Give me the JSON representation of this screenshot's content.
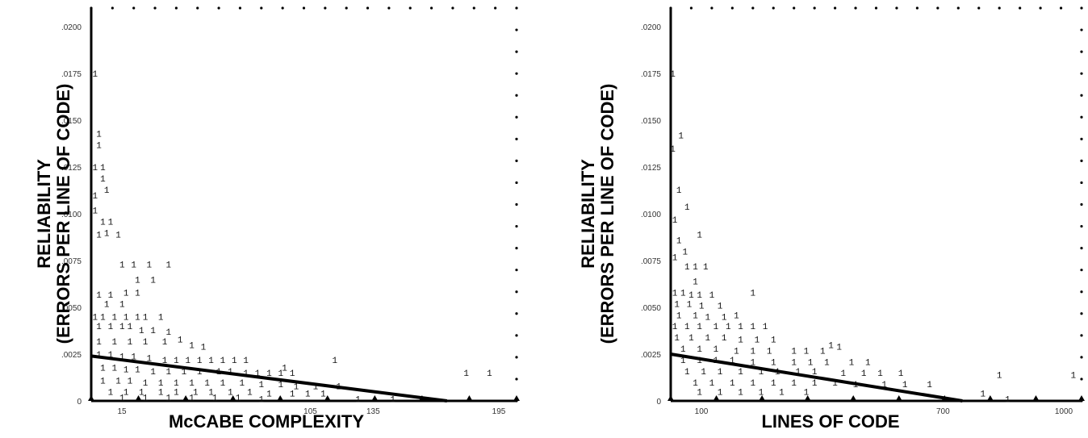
{
  "chart_data": [
    {
      "type": "scatter",
      "title": "",
      "xlabel": "McCABE COMPLEXITY",
      "ylabel_line1": "RELIABILITY",
      "ylabel_line2": "(ERRORS PER LINE OF CODE)",
      "xlim": [
        0,
        110
      ],
      "ylim": [
        0,
        0.021
      ],
      "x_ticks": [
        "15",
        "",
        "",
        "105",
        "135",
        "",
        "195"
      ],
      "y_ticks": [
        "0",
        ".0025",
        ".0050",
        ".0075",
        ".0100",
        ".0125",
        ".0150",
        ".0175",
        ".0200"
      ],
      "grid": false,
      "marker": "1",
      "trend_line": {
        "x": [
          0,
          92
        ],
        "y": [
          0.0024,
          0.0
        ]
      },
      "points": [
        [
          1,
          0.0175
        ],
        [
          1,
          0.0125
        ],
        [
          2,
          0.0143
        ],
        [
          2,
          0.0137
        ],
        [
          3,
          0.0125
        ],
        [
          3,
          0.0119
        ],
        [
          4,
          0.0113
        ],
        [
          1,
          0.011
        ],
        [
          1,
          0.0102
        ],
        [
          3,
          0.0096
        ],
        [
          5,
          0.0096
        ],
        [
          2,
          0.0089
        ],
        [
          4,
          0.009
        ],
        [
          7,
          0.0089
        ],
        [
          8,
          0.0073
        ],
        [
          11,
          0.0073
        ],
        [
          15,
          0.0073
        ],
        [
          20,
          0.0073
        ],
        [
          12,
          0.0065
        ],
        [
          16,
          0.0065
        ],
        [
          2,
          0.0057
        ],
        [
          5,
          0.0057
        ],
        [
          9,
          0.0058
        ],
        [
          12,
          0.0058
        ],
        [
          4,
          0.0052
        ],
        [
          8,
          0.0052
        ],
        [
          1,
          0.0045
        ],
        [
          3,
          0.0045
        ],
        [
          6,
          0.0045
        ],
        [
          9,
          0.0045
        ],
        [
          12,
          0.0045
        ],
        [
          14,
          0.0045
        ],
        [
          18,
          0.0045
        ],
        [
          2,
          0.004
        ],
        [
          5,
          0.004
        ],
        [
          8,
          0.004
        ],
        [
          10,
          0.004
        ],
        [
          13,
          0.0038
        ],
        [
          16,
          0.0038
        ],
        [
          20,
          0.0037
        ],
        [
          23,
          0.0033
        ],
        [
          2,
          0.0032
        ],
        [
          6,
          0.0032
        ],
        [
          10,
          0.0032
        ],
        [
          14,
          0.0032
        ],
        [
          19,
          0.0032
        ],
        [
          26,
          0.003
        ],
        [
          29,
          0.0029
        ],
        [
          2,
          0.0025
        ],
        [
          5,
          0.0025
        ],
        [
          8,
          0.0024
        ],
        [
          11,
          0.0024
        ],
        [
          15,
          0.0023
        ],
        [
          19,
          0.0022
        ],
        [
          22,
          0.0022
        ],
        [
          25,
          0.0022
        ],
        [
          28,
          0.0022
        ],
        [
          31,
          0.0022
        ],
        [
          34,
          0.0022
        ],
        [
          37,
          0.0022
        ],
        [
          40,
          0.0022
        ],
        [
          3,
          0.0018
        ],
        [
          6,
          0.0018
        ],
        [
          9,
          0.0017
        ],
        [
          12,
          0.0017
        ],
        [
          16,
          0.0016
        ],
        [
          20,
          0.0016
        ],
        [
          24,
          0.0016
        ],
        [
          28,
          0.0016
        ],
        [
          33,
          0.0016
        ],
        [
          36,
          0.0016
        ],
        [
          40,
          0.0015
        ],
        [
          43,
          0.0015
        ],
        [
          46,
          0.0015
        ],
        [
          49,
          0.0015
        ],
        [
          52,
          0.0015
        ],
        [
          3,
          0.0011
        ],
        [
          7,
          0.0011
        ],
        [
          10,
          0.0011
        ],
        [
          14,
          0.001
        ],
        [
          18,
          0.001
        ],
        [
          22,
          0.001
        ],
        [
          26,
          0.001
        ],
        [
          30,
          0.001
        ],
        [
          34,
          0.001
        ],
        [
          39,
          0.001
        ],
        [
          44,
          0.0009
        ],
        [
          49,
          0.0009
        ],
        [
          53,
          0.0008
        ],
        [
          58,
          0.0008
        ],
        [
          64,
          0.0008
        ],
        [
          5,
          0.0005
        ],
        [
          9,
          0.0005
        ],
        [
          13,
          0.0005
        ],
        [
          18,
          0.0005
        ],
        [
          22,
          0.0005
        ],
        [
          27,
          0.0005
        ],
        [
          31,
          0.0005
        ],
        [
          36,
          0.0005
        ],
        [
          41,
          0.0005
        ],
        [
          46,
          0.0004
        ],
        [
          52,
          0.0004
        ],
        [
          56,
          0.0004
        ],
        [
          60,
          0.0004
        ],
        [
          8,
          0.0002
        ],
        [
          14,
          0.0002
        ],
        [
          20,
          0.0002
        ],
        [
          26,
          0.0002
        ],
        [
          32,
          0.0002
        ],
        [
          38,
          0.0002
        ],
        [
          44,
          0.0001
        ],
        [
          69,
          0.0001
        ],
        [
          78,
          0.0001
        ],
        [
          97,
          0.0015
        ],
        [
          103,
          0.0015
        ],
        [
          50,
          0.0018
        ],
        [
          63,
          0.0022
        ]
      ]
    },
    {
      "type": "scatter",
      "title": "",
      "xlabel": "LINES OF CODE",
      "ylabel_line1": "RELIABILITY",
      "ylabel_line2": "(ERRORS PER LINE OF CODE)",
      "xlim": [
        0,
        1000
      ],
      "ylim": [
        0,
        0.021
      ],
      "x_ticks": [
        "100",
        "",
        "",
        "",
        "700",
        "",
        "1000"
      ],
      "y_ticks": [
        "0",
        ".0025",
        ".0050",
        ".0075",
        ".0100",
        ".0125",
        ".0150",
        ".0175",
        ".0200"
      ],
      "grid": false,
      "marker": "1",
      "trend_line": {
        "x": [
          0,
          710
        ],
        "y": [
          0.0025,
          0.0
        ]
      },
      "points": [
        [
          5,
          0.0175
        ],
        [
          5,
          0.0135
        ],
        [
          25,
          0.0142
        ],
        [
          20,
          0.0113
        ],
        [
          40,
          0.0104
        ],
        [
          10,
          0.0097
        ],
        [
          70,
          0.0089
        ],
        [
          20,
          0.0086
        ],
        [
          35,
          0.008
        ],
        [
          10,
          0.0077
        ],
        [
          40,
          0.0072
        ],
        [
          60,
          0.0072
        ],
        [
          85,
          0.0072
        ],
        [
          60,
          0.0064
        ],
        [
          10,
          0.0058
        ],
        [
          30,
          0.0058
        ],
        [
          50,
          0.0057
        ],
        [
          70,
          0.0057
        ],
        [
          100,
          0.0057
        ],
        [
          200,
          0.0058
        ],
        [
          15,
          0.0052
        ],
        [
          45,
          0.0052
        ],
        [
          75,
          0.0051
        ],
        [
          120,
          0.0051
        ],
        [
          20,
          0.0046
        ],
        [
          60,
          0.0046
        ],
        [
          90,
          0.0045
        ],
        [
          130,
          0.0045
        ],
        [
          160,
          0.0046
        ],
        [
          10,
          0.004
        ],
        [
          40,
          0.004
        ],
        [
          70,
          0.004
        ],
        [
          110,
          0.004
        ],
        [
          140,
          0.004
        ],
        [
          170,
          0.004
        ],
        [
          200,
          0.004
        ],
        [
          230,
          0.004
        ],
        [
          15,
          0.0034
        ],
        [
          50,
          0.0034
        ],
        [
          90,
          0.0034
        ],
        [
          130,
          0.0034
        ],
        [
          170,
          0.0033
        ],
        [
          210,
          0.0033
        ],
        [
          250,
          0.0033
        ],
        [
          30,
          0.0028
        ],
        [
          70,
          0.0028
        ],
        [
          110,
          0.0028
        ],
        [
          160,
          0.0027
        ],
        [
          200,
          0.0027
        ],
        [
          240,
          0.0027
        ],
        [
          300,
          0.0027
        ],
        [
          330,
          0.0027
        ],
        [
          370,
          0.0027
        ],
        [
          390,
          0.003
        ],
        [
          410,
          0.0029
        ],
        [
          30,
          0.0022
        ],
        [
          70,
          0.0022
        ],
        [
          110,
          0.0022
        ],
        [
          150,
          0.0022
        ],
        [
          200,
          0.0021
        ],
        [
          250,
          0.0021
        ],
        [
          300,
          0.0021
        ],
        [
          340,
          0.0021
        ],
        [
          380,
          0.0021
        ],
        [
          440,
          0.0021
        ],
        [
          480,
          0.0021
        ],
        [
          40,
          0.0016
        ],
        [
          80,
          0.0016
        ],
        [
          120,
          0.0016
        ],
        [
          170,
          0.0016
        ],
        [
          220,
          0.0016
        ],
        [
          260,
          0.0016
        ],
        [
          310,
          0.0016
        ],
        [
          350,
          0.0016
        ],
        [
          420,
          0.0015
        ],
        [
          470,
          0.0015
        ],
        [
          510,
          0.0015
        ],
        [
          560,
          0.0015
        ],
        [
          60,
          0.001
        ],
        [
          100,
          0.001
        ],
        [
          150,
          0.001
        ],
        [
          200,
          0.001
        ],
        [
          250,
          0.001
        ],
        [
          300,
          0.001
        ],
        [
          350,
          0.001
        ],
        [
          400,
          0.001
        ],
        [
          450,
          0.0009
        ],
        [
          520,
          0.0009
        ],
        [
          570,
          0.0009
        ],
        [
          630,
          0.0009
        ],
        [
          70,
          0.0005
        ],
        [
          120,
          0.0005
        ],
        [
          170,
          0.0005
        ],
        [
          220,
          0.0005
        ],
        [
          270,
          0.0005
        ],
        [
          330,
          0.0005
        ],
        [
          760,
          0.0004
        ],
        [
          820,
          0.0001
        ],
        [
          980,
          0.0014
        ],
        [
          800,
          0.0014
        ]
      ]
    }
  ]
}
